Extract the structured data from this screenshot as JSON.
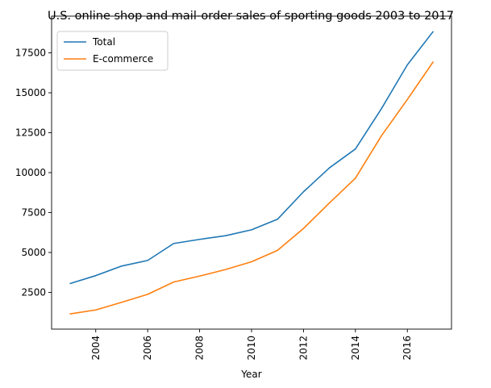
{
  "chart_data": {
    "type": "line",
    "title": "U.S. online shop and mail-order sales of sporting goods 2003 to 2017",
    "xlabel": "Year",
    "ylabel": "",
    "x": [
      2003,
      2004,
      2005,
      2006,
      2007,
      2008,
      2009,
      2010,
      2011,
      2012,
      2013,
      2014,
      2015,
      2016,
      2017
    ],
    "series": [
      {
        "name": "Total",
        "color": "#1f77b4",
        "values": [
          3050,
          3550,
          4150,
          4500,
          5560,
          5820,
          6050,
          6420,
          7080,
          8800,
          10300,
          11480,
          14000,
          16750,
          18850
        ]
      },
      {
        "name": "E-commerce",
        "color": "#ff7f0e",
        "values": [
          1150,
          1400,
          1880,
          2380,
          3150,
          3520,
          3930,
          4420,
          5130,
          6500,
          8100,
          9650,
          12300,
          14580,
          16950
        ]
      }
    ],
    "xlim": [
      2002.3,
      2017.7
    ],
    "ylim": [
      200,
      19800
    ],
    "x_ticks": [
      "2004",
      "2006",
      "2008",
      "2010",
      "2012",
      "2014",
      "2016"
    ],
    "y_ticks": [
      "2500",
      "5000",
      "7500",
      "10000",
      "12500",
      "15000",
      "17500"
    ],
    "x_tick_rotation": "vertical",
    "grid": false,
    "legend_position": "top-left"
  }
}
